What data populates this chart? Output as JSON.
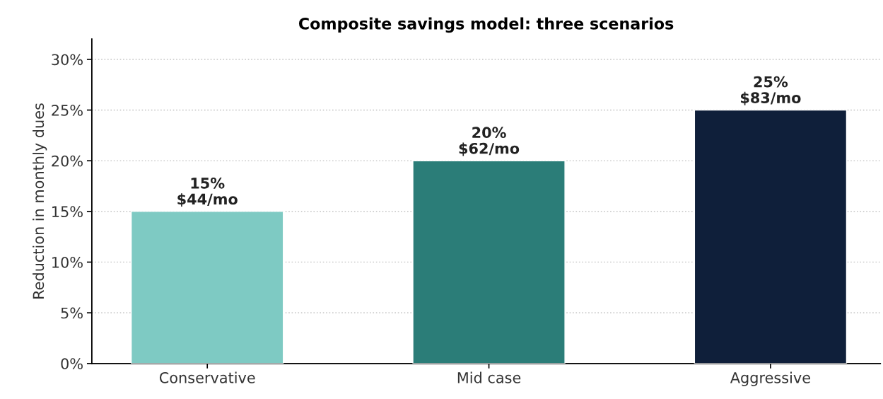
{
  "chart_data": {
    "type": "bar",
    "title": "Composite savings model: three scenarios",
    "ylabel": "Reduction in monthly dues",
    "categories": [
      "Conservative",
      "Mid case",
      "Aggressive"
    ],
    "values": [
      15,
      20,
      25
    ],
    "colors": [
      "#7ecac3",
      "#2b7d78",
      "#0f1f3a"
    ],
    "value_labels": [
      "15%\n$44/mo",
      "20%\n$62/mo",
      "25%\n$83/mo"
    ],
    "ylim": [
      0,
      32
    ],
    "yticks": [
      {
        "value": 0,
        "label": "0%"
      },
      {
        "value": 5,
        "label": "5%"
      },
      {
        "value": 10,
        "label": "10%"
      },
      {
        "value": 15,
        "label": "15%"
      },
      {
        "value": 20,
        "label": "20%"
      },
      {
        "value": 25,
        "label": "25%"
      },
      {
        "value": 30,
        "label": "30%"
      }
    ],
    "grid": "y"
  }
}
